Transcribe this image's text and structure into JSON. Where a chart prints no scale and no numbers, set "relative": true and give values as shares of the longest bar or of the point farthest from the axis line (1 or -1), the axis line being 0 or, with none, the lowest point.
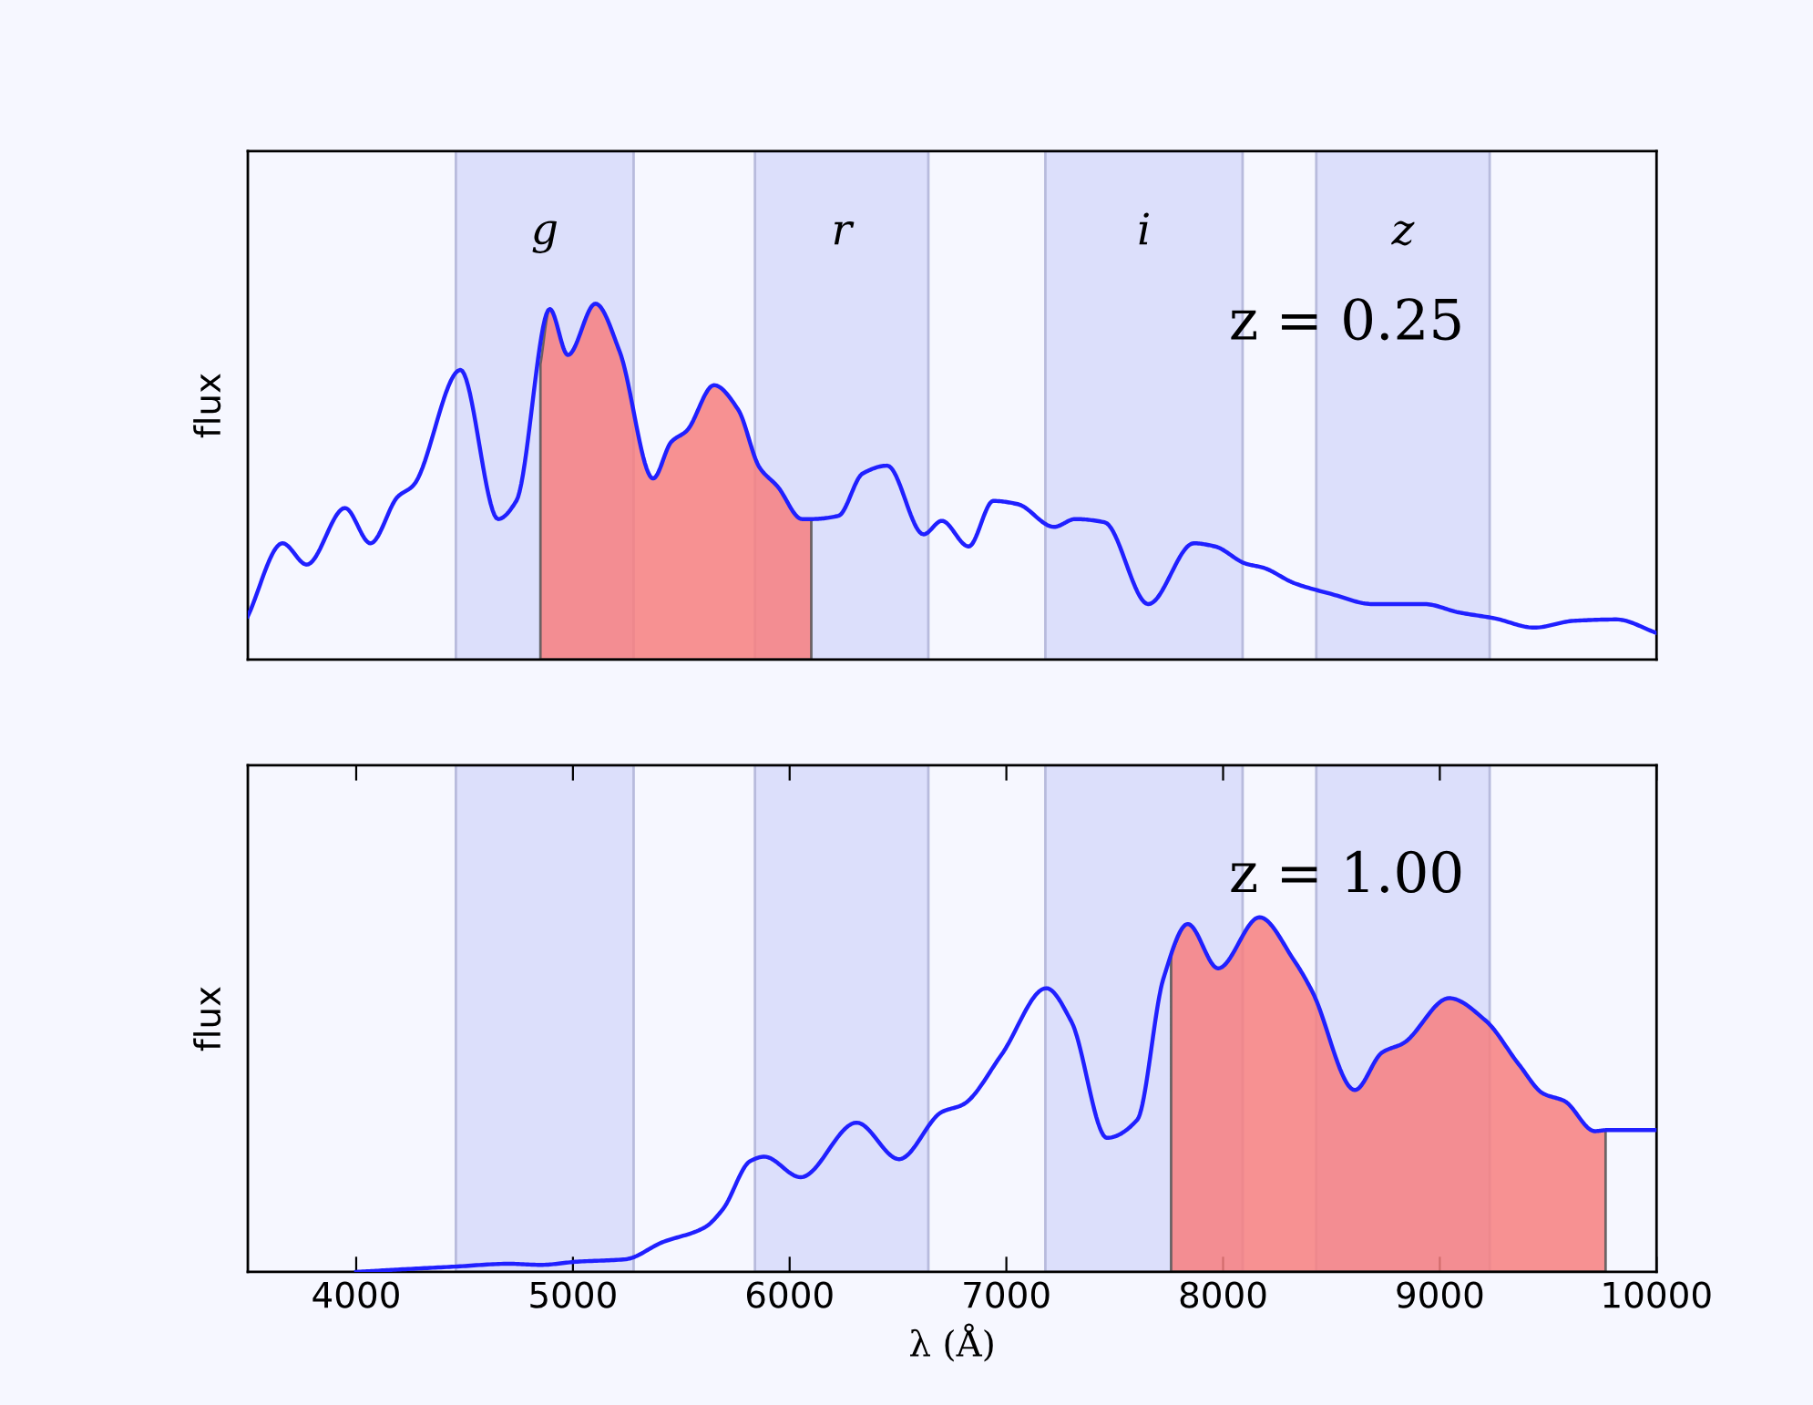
{
  "chart_data": [
    {
      "type": "line",
      "xlim": [
        3500,
        10000
      ],
      "tick_labels": false,
      "ylabel": "flux",
      "relative": true,
      "annotations": [
        "z = 0.25"
      ],
      "bands": [
        {
          "axis": "x",
          "from": 4460,
          "to": 5280,
          "label": "g",
          "color": "#dcdffb"
        },
        {
          "axis": "x",
          "from": 5840,
          "to": 6640,
          "label": "r",
          "color": "#dcdffb"
        },
        {
          "axis": "x",
          "from": 7180,
          "to": 8090,
          "label": "i",
          "color": "#dcdffb"
        },
        {
          "axis": "x",
          "from": 8430,
          "to": 9230,
          "label": "z",
          "color": "#dcdffb"
        }
      ],
      "series": [
        {
          "type": "area",
          "color": "#f77f7f",
          "x": [
            4850,
            4893,
            4977,
            5104,
            5216,
            5370,
            5454,
            5525,
            5651,
            5762,
            5861,
            5945,
            6057,
            6100
          ],
          "values": [
            0.83,
            0.985,
            0.856,
            1.0,
            0.865,
            0.509,
            0.612,
            0.643,
            0.771,
            0.703,
            0.54,
            0.486,
            0.395,
            0.395
          ]
        },
        {
          "color": "#2020ff",
          "x": [
            3500,
            3660,
            3772,
            3948,
            4066,
            4192,
            4263,
            4481,
            4655,
            4739,
            4893,
            4977,
            5104,
            5216,
            5370,
            5454,
            5525,
            5651,
            5762,
            5861,
            5945,
            6057,
            6100,
            6225,
            6337,
            6450,
            6618,
            6702,
            6826,
            6940,
            7052,
            7220,
            7318,
            7453,
            7655,
            7865,
            7963,
            8103,
            8187,
            8328,
            8496,
            8692,
            8931,
            9085,
            9253,
            9436,
            9617,
            9814,
            10000
          ],
          "values": [
            0.122,
            0.327,
            0.267,
            0.426,
            0.327,
            0.458,
            0.489,
            0.814,
            0.395,
            0.446,
            0.985,
            0.856,
            1.0,
            0.865,
            0.509,
            0.612,
            0.643,
            0.771,
            0.703,
            0.54,
            0.486,
            0.395,
            0.395,
            0.404,
            0.523,
            0.545,
            0.352,
            0.39,
            0.318,
            0.446,
            0.437,
            0.373,
            0.395,
            0.386,
            0.156,
            0.327,
            0.318,
            0.27,
            0.258,
            0.215,
            0.185,
            0.156,
            0.156,
            0.133,
            0.116,
            0.09,
            0.109,
            0.113,
            0.075
          ]
        }
      ]
    },
    {
      "type": "line",
      "xlim": [
        3500,
        10000
      ],
      "xticks": [
        4000,
        5000,
        6000,
        7000,
        8000,
        9000,
        10000
      ],
      "tick_labels": "x",
      "xlabel": "λ (Å)",
      "ylabel": "flux",
      "relative": true,
      "annotations": [
        "z = 1.00"
      ],
      "bands": [
        {
          "axis": "x",
          "from": 4460,
          "to": 5280,
          "color": "#dcdffb"
        },
        {
          "axis": "x",
          "from": 5840,
          "to": 6640,
          "color": "#dcdffb"
        },
        {
          "axis": "x",
          "from": 7180,
          "to": 8090,
          "color": "#dcdffb"
        },
        {
          "axis": "x",
          "from": 8430,
          "to": 9230,
          "color": "#dcdffb"
        }
      ],
      "series": [
        {
          "type": "area",
          "color": "#f77f7f",
          "x": [
            7760,
            7837,
            7977,
            8168,
            8328,
            8412,
            8608,
            8734,
            8832,
            9043,
            9211,
            9365,
            9477,
            9575,
            9715,
            9765
          ],
          "values": [
            0.9,
            0.981,
            0.856,
            1.0,
            0.878,
            0.79,
            0.513,
            0.619,
            0.645,
            0.772,
            0.709,
            0.585,
            0.503,
            0.482,
            0.397,
            0.4
          ]
        },
        {
          "color": "#2020ff",
          "x": [
            4000,
            4201,
            4454,
            4706,
            4852,
            5020,
            5244,
            5410,
            5609,
            5692,
            5819,
            5883,
            6051,
            6309,
            6505,
            6702,
            6800,
            6977,
            7184,
            7300,
            7464,
            7604,
            7724,
            7837,
            7977,
            8168,
            8328,
            8412,
            8608,
            8734,
            8832,
            9043,
            9211,
            9365,
            9477,
            9575,
            9715,
            9771,
            10000
          ],
          "values": [
            0,
            0.007,
            0.015,
            0.023,
            0.02,
            0.029,
            0.036,
            0.083,
            0.126,
            0.177,
            0.313,
            0.325,
            0.267,
            0.421,
            0.318,
            0.451,
            0.472,
            0.612,
            0.8,
            0.706,
            0.378,
            0.429,
            0.826,
            0.981,
            0.856,
            1.0,
            0.878,
            0.79,
            0.513,
            0.619,
            0.645,
            0.772,
            0.709,
            0.585,
            0.503,
            0.482,
            0.397,
            0.4,
            0.4
          ]
        }
      ]
    }
  ]
}
